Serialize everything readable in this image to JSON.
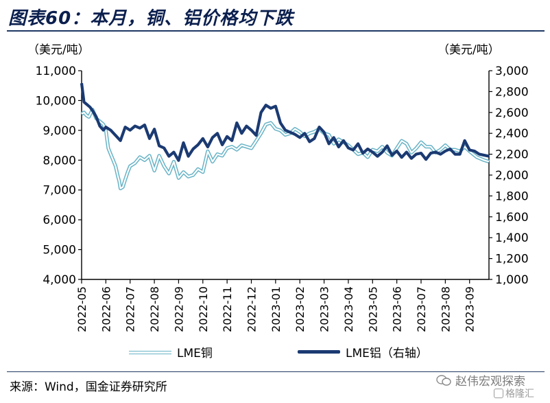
{
  "title": "图表60：本月，铜、铝价格均下跌",
  "units": {
    "left": "（美元/吨）",
    "right": "（美元/吨）"
  },
  "legend": {
    "copper": "LME铜",
    "aluminum": "LME铝（右轴）"
  },
  "source": "来源：Wind，国金证券研究所",
  "watermark": {
    "main": "赵伟宏观探索",
    "sub": "格隆汇"
  },
  "colors": {
    "copper": "#67b3c6",
    "aluminum": "#1b3a72",
    "title": "#0b1f4e"
  },
  "chart_data": {
    "type": "line",
    "x_ticks": [
      "2022-05",
      "2022-06",
      "2022-07",
      "2022-08",
      "2022-09",
      "2022-10",
      "2022-11",
      "2022-12",
      "2023-01",
      "2023-02",
      "2023-03",
      "2023-04",
      "2023-05",
      "2023-06",
      "2023-07",
      "2023-08",
      "2023-09"
    ],
    "y_left": {
      "min": 4000,
      "max": 11000,
      "step": 1000,
      "tick_labels": [
        "4,000",
        "5,000",
        "6,000",
        "7,000",
        "8,000",
        "9,000",
        "10,000",
        "11,000"
      ]
    },
    "y_right": {
      "min": 1000,
      "max": 3000,
      "step": 200,
      "tick_labels": [
        "1,000",
        "1,200",
        "1,400",
        "1,600",
        "1,800",
        "2,000",
        "2,200",
        "2,400",
        "2,600",
        "2,800",
        "3,000"
      ]
    },
    "series": [
      {
        "name": "LME铜",
        "axis": "left",
        "x": [
          0,
          0.1,
          0.2,
          0.3,
          0.45,
          0.6,
          0.75,
          0.9,
          1.0,
          1.05,
          1.1,
          1.2,
          1.3,
          1.4,
          1.5,
          1.55,
          1.6,
          1.7,
          1.8,
          1.9,
          2.0,
          2.2,
          2.4,
          2.6,
          2.8,
          3.0,
          3.2,
          3.4,
          3.6,
          3.8,
          4.0,
          4.2,
          4.4,
          4.6,
          4.8,
          5.0,
          5.2,
          5.4,
          5.6,
          5.8,
          6.0,
          6.2,
          6.4,
          6.6,
          6.8,
          7.0,
          7.2,
          7.4,
          7.6,
          7.8,
          8.0,
          8.2,
          8.4,
          8.6,
          8.8,
          9.0,
          9.2,
          9.4,
          9.6,
          9.8,
          10.0,
          10.2,
          10.4,
          10.6,
          10.8,
          11.0,
          11.2,
          11.4,
          11.6,
          11.8,
          12.0,
          12.2,
          12.4,
          12.6,
          12.8,
          13.0,
          13.2,
          13.4,
          13.6,
          13.8,
          14.0,
          14.2,
          14.4,
          14.6,
          14.8,
          15.0,
          15.2,
          15.4,
          15.6,
          15.8,
          16.0,
          16.3,
          16.6,
          16.8
        ],
        "y": [
          9550,
          9600,
          9500,
          9450,
          9700,
          9400,
          9300,
          9200,
          9000,
          8700,
          8400,
          8200,
          8000,
          7800,
          7450,
          7300,
          7050,
          7100,
          7350,
          7600,
          7800,
          7900,
          8100,
          8000,
          8150,
          7650,
          8150,
          7800,
          7550,
          7950,
          7400,
          7600,
          7450,
          7500,
          7700,
          7600,
          8300,
          7950,
          8200,
          8150,
          8400,
          8450,
          8350,
          8500,
          8450,
          8400,
          8650,
          8900,
          9200,
          9250,
          9050,
          9000,
          8850,
          8900,
          9050,
          8950,
          8800,
          8900,
          8950,
          9050,
          8900,
          8850,
          8550,
          8700,
          8600,
          8500,
          8350,
          8200,
          8250,
          8100,
          8350,
          8300,
          8450,
          8250,
          8150,
          8400,
          8650,
          8550,
          8250,
          8400,
          8600,
          8450,
          8450,
          8250,
          8350,
          8500,
          8350,
          8350,
          8300,
          8450,
          8300,
          8100,
          8000,
          7950
        ]
      },
      {
        "name": "LME铝（右轴）",
        "axis": "right",
        "x": [
          0,
          0.1,
          0.2,
          0.35,
          0.5,
          0.6,
          0.75,
          0.9,
          1.0,
          1.2,
          1.4,
          1.6,
          1.8,
          2.0,
          2.2,
          2.4,
          2.6,
          2.8,
          3.0,
          3.2,
          3.4,
          3.6,
          3.8,
          4.0,
          4.2,
          4.4,
          4.6,
          4.8,
          5.0,
          5.2,
          5.4,
          5.6,
          5.8,
          6.0,
          6.2,
          6.4,
          6.6,
          6.8,
          7.0,
          7.2,
          7.4,
          7.6,
          7.8,
          8.0,
          8.2,
          8.4,
          8.6,
          8.8,
          9.0,
          9.2,
          9.4,
          9.6,
          9.8,
          10.0,
          10.2,
          10.4,
          10.6,
          10.8,
          11.0,
          11.2,
          11.4,
          11.6,
          11.8,
          12.0,
          12.2,
          12.4,
          12.6,
          12.8,
          13.0,
          13.2,
          13.4,
          13.6,
          13.8,
          14.0,
          14.2,
          14.4,
          14.6,
          14.8,
          15.0,
          15.2,
          15.4,
          15.6,
          15.8,
          16.0,
          16.2,
          16.4,
          16.6,
          16.8
        ],
        "y": [
          2880,
          2700,
          2680,
          2650,
          2600,
          2560,
          2470,
          2430,
          2460,
          2430,
          2380,
          2330,
          2460,
          2430,
          2470,
          2450,
          2480,
          2350,
          2440,
          2280,
          2260,
          2180,
          2220,
          2140,
          2310,
          2180,
          2250,
          2290,
          2350,
          2270,
          2360,
          2400,
          2290,
          2370,
          2330,
          2500,
          2400,
          2470,
          2430,
          2380,
          2600,
          2670,
          2640,
          2660,
          2500,
          2430,
          2410,
          2390,
          2360,
          2400,
          2320,
          2350,
          2460,
          2410,
          2300,
          2360,
          2270,
          2330,
          2260,
          2240,
          2300,
          2210,
          2250,
          2220,
          2180,
          2220,
          2280,
          2190,
          2230,
          2170,
          2220,
          2160,
          2200,
          2210,
          2150,
          2210,
          2220,
          2200,
          2230,
          2250,
          2200,
          2200,
          2330,
          2240,
          2230,
          2200,
          2190,
          2180
        ]
      }
    ]
  }
}
